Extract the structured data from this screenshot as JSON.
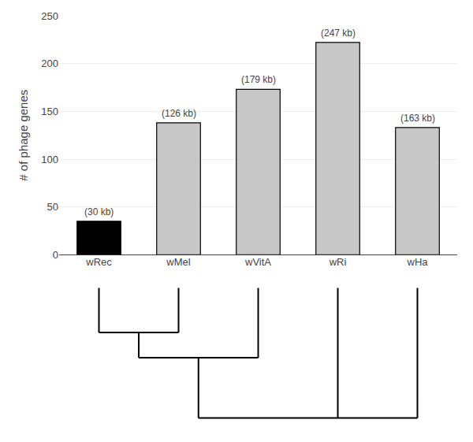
{
  "chart_data": {
    "type": "bar",
    "categories": [
      "wRec",
      "wMel",
      "wVitA",
      "wRi",
      "wHa"
    ],
    "values": [
      35,
      138,
      173,
      222,
      133
    ],
    "annotations": [
      "(30 kb)",
      "(126 kb)",
      "(179 kb)",
      "(247 kb)",
      "(163 kb)"
    ],
    "colors": [
      "#000000",
      "#c8c8c8",
      "#c8c8c8",
      "#c8c8c8",
      "#c8c8c8"
    ],
    "ylabel": "# of phage genes",
    "ylim": [
      0,
      250
    ],
    "yticks": [
      0,
      50,
      100,
      150,
      200,
      250
    ],
    "grid": true
  }
}
